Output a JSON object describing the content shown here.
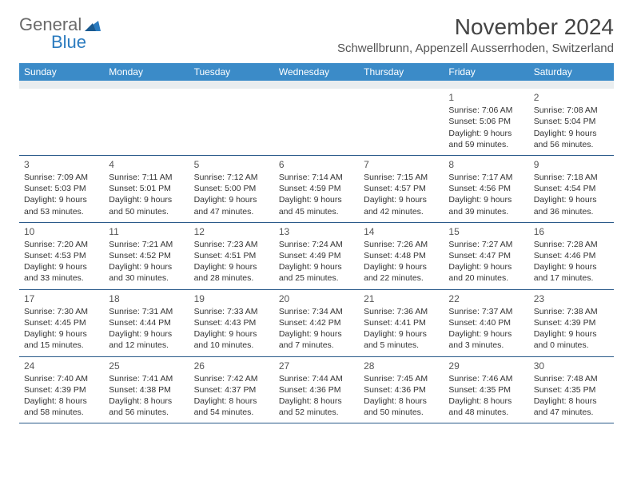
{
  "logo": {
    "part1": "General",
    "part2": "Blue"
  },
  "title": "November 2024",
  "location": "Schwellbrunn, Appenzell Ausserrhoden, Switzerland",
  "colors": {
    "header_bg": "#3b8bc8",
    "header_text": "#ffffff",
    "spacer_bg": "#e9edef",
    "row_border": "#2a5a8a",
    "logo_gray": "#6a6a6a",
    "logo_blue": "#2b7bbf",
    "text": "#333333",
    "background": "#ffffff"
  },
  "typography": {
    "title_fontsize": 28,
    "location_fontsize": 15,
    "weekday_fontsize": 12,
    "daynum_fontsize": 12,
    "cell_fontsize": 10.5
  },
  "weekdays": [
    "Sunday",
    "Monday",
    "Tuesday",
    "Wednesday",
    "Thursday",
    "Friday",
    "Saturday"
  ],
  "weeks": [
    [
      null,
      null,
      null,
      null,
      null,
      {
        "day": "1",
        "sunrise": "Sunrise: 7:06 AM",
        "sunset": "Sunset: 5:06 PM",
        "daylight": "Daylight: 9 hours and 59 minutes."
      },
      {
        "day": "2",
        "sunrise": "Sunrise: 7:08 AM",
        "sunset": "Sunset: 5:04 PM",
        "daylight": "Daylight: 9 hours and 56 minutes."
      }
    ],
    [
      {
        "day": "3",
        "sunrise": "Sunrise: 7:09 AM",
        "sunset": "Sunset: 5:03 PM",
        "daylight": "Daylight: 9 hours and 53 minutes."
      },
      {
        "day": "4",
        "sunrise": "Sunrise: 7:11 AM",
        "sunset": "Sunset: 5:01 PM",
        "daylight": "Daylight: 9 hours and 50 minutes."
      },
      {
        "day": "5",
        "sunrise": "Sunrise: 7:12 AM",
        "sunset": "Sunset: 5:00 PM",
        "daylight": "Daylight: 9 hours and 47 minutes."
      },
      {
        "day": "6",
        "sunrise": "Sunrise: 7:14 AM",
        "sunset": "Sunset: 4:59 PM",
        "daylight": "Daylight: 9 hours and 45 minutes."
      },
      {
        "day": "7",
        "sunrise": "Sunrise: 7:15 AM",
        "sunset": "Sunset: 4:57 PM",
        "daylight": "Daylight: 9 hours and 42 minutes."
      },
      {
        "day": "8",
        "sunrise": "Sunrise: 7:17 AM",
        "sunset": "Sunset: 4:56 PM",
        "daylight": "Daylight: 9 hours and 39 minutes."
      },
      {
        "day": "9",
        "sunrise": "Sunrise: 7:18 AM",
        "sunset": "Sunset: 4:54 PM",
        "daylight": "Daylight: 9 hours and 36 minutes."
      }
    ],
    [
      {
        "day": "10",
        "sunrise": "Sunrise: 7:20 AM",
        "sunset": "Sunset: 4:53 PM",
        "daylight": "Daylight: 9 hours and 33 minutes."
      },
      {
        "day": "11",
        "sunrise": "Sunrise: 7:21 AM",
        "sunset": "Sunset: 4:52 PM",
        "daylight": "Daylight: 9 hours and 30 minutes."
      },
      {
        "day": "12",
        "sunrise": "Sunrise: 7:23 AM",
        "sunset": "Sunset: 4:51 PM",
        "daylight": "Daylight: 9 hours and 28 minutes."
      },
      {
        "day": "13",
        "sunrise": "Sunrise: 7:24 AM",
        "sunset": "Sunset: 4:49 PM",
        "daylight": "Daylight: 9 hours and 25 minutes."
      },
      {
        "day": "14",
        "sunrise": "Sunrise: 7:26 AM",
        "sunset": "Sunset: 4:48 PM",
        "daylight": "Daylight: 9 hours and 22 minutes."
      },
      {
        "day": "15",
        "sunrise": "Sunrise: 7:27 AM",
        "sunset": "Sunset: 4:47 PM",
        "daylight": "Daylight: 9 hours and 20 minutes."
      },
      {
        "day": "16",
        "sunrise": "Sunrise: 7:28 AM",
        "sunset": "Sunset: 4:46 PM",
        "daylight": "Daylight: 9 hours and 17 minutes."
      }
    ],
    [
      {
        "day": "17",
        "sunrise": "Sunrise: 7:30 AM",
        "sunset": "Sunset: 4:45 PM",
        "daylight": "Daylight: 9 hours and 15 minutes."
      },
      {
        "day": "18",
        "sunrise": "Sunrise: 7:31 AM",
        "sunset": "Sunset: 4:44 PM",
        "daylight": "Daylight: 9 hours and 12 minutes."
      },
      {
        "day": "19",
        "sunrise": "Sunrise: 7:33 AM",
        "sunset": "Sunset: 4:43 PM",
        "daylight": "Daylight: 9 hours and 10 minutes."
      },
      {
        "day": "20",
        "sunrise": "Sunrise: 7:34 AM",
        "sunset": "Sunset: 4:42 PM",
        "daylight": "Daylight: 9 hours and 7 minutes."
      },
      {
        "day": "21",
        "sunrise": "Sunrise: 7:36 AM",
        "sunset": "Sunset: 4:41 PM",
        "daylight": "Daylight: 9 hours and 5 minutes."
      },
      {
        "day": "22",
        "sunrise": "Sunrise: 7:37 AM",
        "sunset": "Sunset: 4:40 PM",
        "daylight": "Daylight: 9 hours and 3 minutes."
      },
      {
        "day": "23",
        "sunrise": "Sunrise: 7:38 AM",
        "sunset": "Sunset: 4:39 PM",
        "daylight": "Daylight: 9 hours and 0 minutes."
      }
    ],
    [
      {
        "day": "24",
        "sunrise": "Sunrise: 7:40 AM",
        "sunset": "Sunset: 4:39 PM",
        "daylight": "Daylight: 8 hours and 58 minutes."
      },
      {
        "day": "25",
        "sunrise": "Sunrise: 7:41 AM",
        "sunset": "Sunset: 4:38 PM",
        "daylight": "Daylight: 8 hours and 56 minutes."
      },
      {
        "day": "26",
        "sunrise": "Sunrise: 7:42 AM",
        "sunset": "Sunset: 4:37 PM",
        "daylight": "Daylight: 8 hours and 54 minutes."
      },
      {
        "day": "27",
        "sunrise": "Sunrise: 7:44 AM",
        "sunset": "Sunset: 4:36 PM",
        "daylight": "Daylight: 8 hours and 52 minutes."
      },
      {
        "day": "28",
        "sunrise": "Sunrise: 7:45 AM",
        "sunset": "Sunset: 4:36 PM",
        "daylight": "Daylight: 8 hours and 50 minutes."
      },
      {
        "day": "29",
        "sunrise": "Sunrise: 7:46 AM",
        "sunset": "Sunset: 4:35 PM",
        "daylight": "Daylight: 8 hours and 48 minutes."
      },
      {
        "day": "30",
        "sunrise": "Sunrise: 7:48 AM",
        "sunset": "Sunset: 4:35 PM",
        "daylight": "Daylight: 8 hours and 47 minutes."
      }
    ]
  ]
}
